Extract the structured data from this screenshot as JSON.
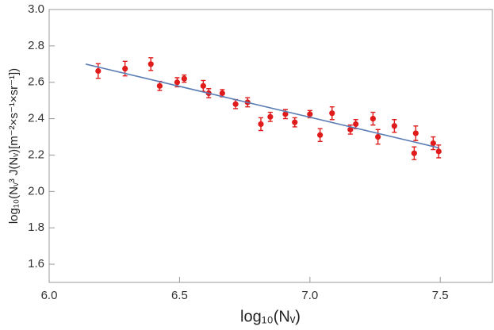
{
  "chart_data": {
    "type": "scatter",
    "x_label": "log₁₀(Nᵥ)",
    "y_label": "log₁₀(Nᵥ³ J(Nᵥ)[m⁻²×s⁻¹×sr⁻¹])",
    "xlim": [
      6.0,
      7.7
    ],
    "ylim": [
      1.5,
      3.0
    ],
    "xticks": [
      {
        "value": 6.0,
        "label": "6.0"
      },
      6.5,
      {
        "value": 7.0,
        "label": "7.0"
      },
      7.5
    ],
    "yticks": [
      1.6,
      1.8,
      {
        "value": 2.0,
        "label": "2.0"
      },
      2.2,
      2.4,
      2.6,
      2.8,
      {
        "value": 3.0,
        "label": "3.0"
      }
    ],
    "series": [
      {
        "type": "scatter",
        "color": "#e01b1b",
        "x": [
          6.188,
          6.291,
          6.39,
          6.424,
          6.491,
          6.518,
          6.591,
          6.612,
          6.664,
          6.715,
          6.761,
          6.812,
          6.848,
          6.906,
          6.942,
          7.0,
          7.039,
          7.085,
          7.155,
          7.176,
          7.242,
          7.261,
          7.324,
          7.4,
          7.406,
          7.473,
          7.494
        ],
        "values": [
          2.662,
          2.675,
          2.7,
          2.58,
          2.6,
          2.62,
          2.58,
          2.54,
          2.54,
          2.48,
          2.49,
          2.37,
          2.41,
          2.425,
          2.38,
          2.425,
          2.31,
          2.43,
          2.34,
          2.37,
          2.4,
          2.3,
          2.36,
          2.21,
          2.32,
          2.265,
          2.22
        ],
        "errors": [
          0.04,
          0.04,
          0.035,
          0.025,
          0.025,
          0.02,
          0.03,
          0.025,
          0.02,
          0.025,
          0.025,
          0.035,
          0.025,
          0.025,
          0.025,
          0.02,
          0.035,
          0.035,
          0.025,
          0.025,
          0.035,
          0.04,
          0.035,
          0.035,
          0.04,
          0.035,
          0.035
        ]
      },
      {
        "type": "line",
        "color": "#5a7db5",
        "x": [
          6.14,
          7.494
        ],
        "values": [
          2.7,
          2.24
        ]
      }
    ]
  }
}
